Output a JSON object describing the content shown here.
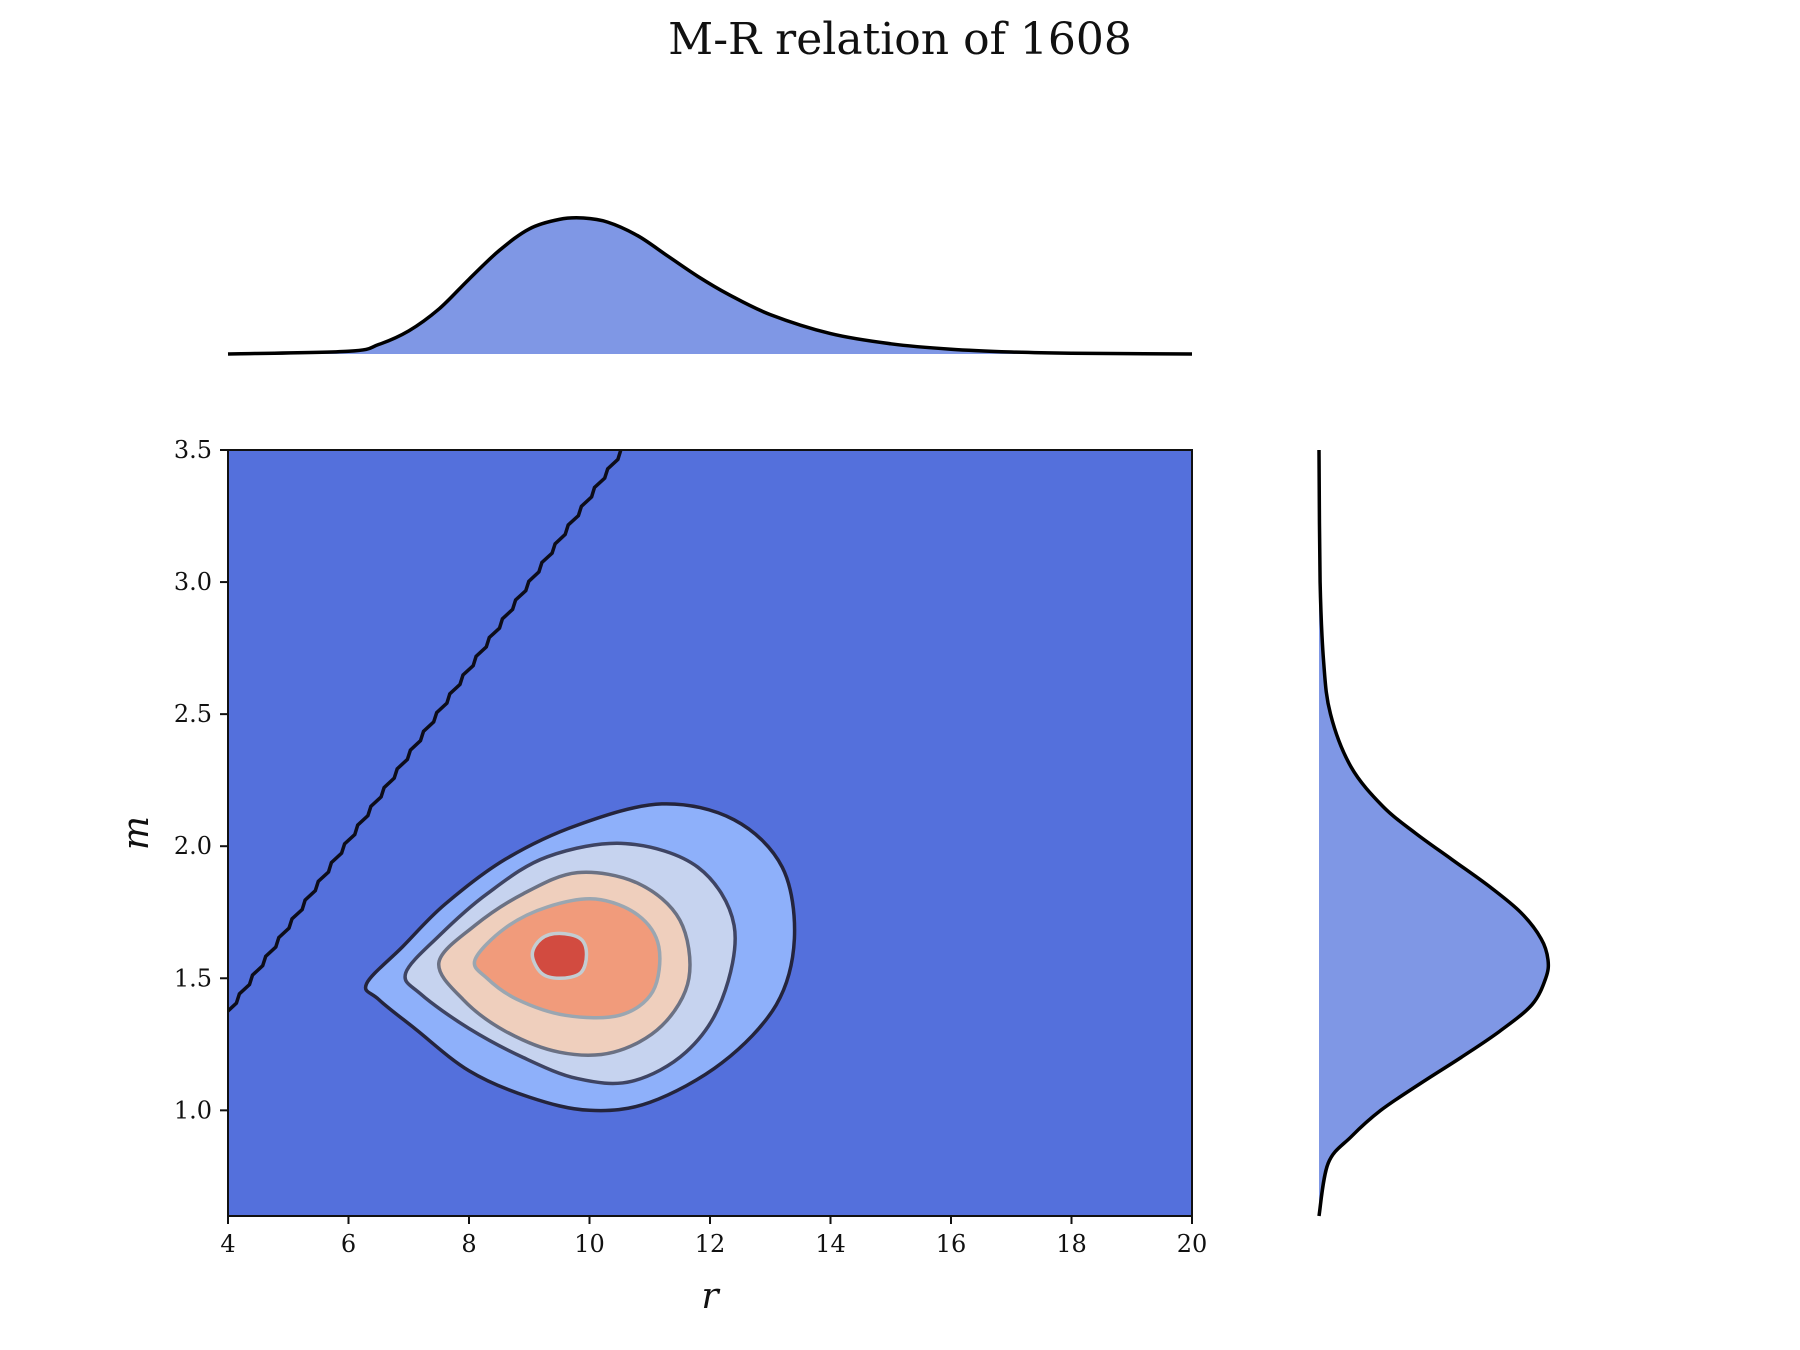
{
  "chart_data": {
    "type": "contour",
    "title": "M-R relation of 1608",
    "xlabel": "r",
    "ylabel": "m",
    "xlim": [
      4,
      20
    ],
    "ylim": [
      0.6,
      3.5
    ],
    "x_ticks": [
      "4",
      "6",
      "8",
      "10",
      "12",
      "14",
      "16",
      "18",
      "20"
    ],
    "y_ticks": [
      "1.0",
      "1.5",
      "2.0",
      "2.5",
      "3.0",
      "3.5"
    ],
    "grid": false,
    "joint_density": {
      "mode": [
        9.5,
        1.59
      ],
      "fill_colors": [
        "#5470dc",
        "#8eb0fa",
        "#c6d3ef",
        "#efcfbd",
        "#f19b7b",
        "#d24b40"
      ],
      "contour_line_colors": [
        "#24243c",
        "#3e4463",
        "#6b7183",
        "#9aa6b1",
        "#c3cdd2"
      ],
      "levels": [
        {
          "level": 1,
          "points": [
            [
              6.3,
              1.48
            ],
            [
              6.9,
              1.62
            ],
            [
              7.6,
              1.78
            ],
            [
              8.6,
              1.95
            ],
            [
              9.8,
              2.08
            ],
            [
              11.2,
              2.16
            ],
            [
              12.4,
              2.1
            ],
            [
              13.2,
              1.92
            ],
            [
              13.4,
              1.65
            ],
            [
              13.1,
              1.4
            ],
            [
              12.2,
              1.18
            ],
            [
              11,
              1.03
            ],
            [
              10,
              1
            ],
            [
              9,
              1.05
            ],
            [
              8,
              1.15
            ],
            [
              7.1,
              1.31
            ],
            [
              6.5,
              1.42
            ]
          ]
        },
        {
          "level": 2,
          "points": [
            [
              6.95,
              1.52
            ],
            [
              7.5,
              1.66
            ],
            [
              8.3,
              1.82
            ],
            [
              9.3,
              1.96
            ],
            [
              10.6,
              2.01
            ],
            [
              11.8,
              1.92
            ],
            [
              12.4,
              1.7
            ],
            [
              12.2,
              1.42
            ],
            [
              11.6,
              1.22
            ],
            [
              10.7,
              1.11
            ],
            [
              9.8,
              1.12
            ],
            [
              8.9,
              1.2
            ],
            [
              8,
              1.31
            ],
            [
              7.2,
              1.44
            ]
          ]
        },
        {
          "level": 3,
          "points": [
            [
              7.5,
              1.56
            ],
            [
              8.1,
              1.7
            ],
            [
              8.9,
              1.82
            ],
            [
              9.8,
              1.9
            ],
            [
              10.8,
              1.86
            ],
            [
              11.5,
              1.72
            ],
            [
              11.65,
              1.5
            ],
            [
              11.2,
              1.32
            ],
            [
              10.4,
              1.22
            ],
            [
              9.5,
              1.22
            ],
            [
              8.6,
              1.3
            ],
            [
              7.9,
              1.42
            ]
          ]
        },
        {
          "level": 4,
          "points": [
            [
              8.1,
              1.57
            ],
            [
              8.6,
              1.69
            ],
            [
              9.3,
              1.77
            ],
            [
              10.1,
              1.8
            ],
            [
              10.8,
              1.74
            ],
            [
              11.15,
              1.62
            ],
            [
              11.05,
              1.45
            ],
            [
              10.5,
              1.36
            ],
            [
              9.6,
              1.36
            ],
            [
              8.8,
              1.42
            ],
            [
              8.3,
              1.5
            ]
          ]
        },
        {
          "level": 5,
          "points": [
            [
              9.05,
              1.59
            ],
            [
              9.2,
              1.65
            ],
            [
              9.5,
              1.67
            ],
            [
              9.85,
              1.65
            ],
            [
              9.95,
              1.59
            ],
            [
              9.85,
              1.52
            ],
            [
              9.5,
              1.5
            ],
            [
              9.2,
              1.52
            ]
          ]
        }
      ],
      "boundary_line": {
        "points": [
          [
            4,
            1.37
          ],
          [
            10.55,
            3.5
          ]
        ]
      }
    },
    "marginal_r": {
      "fill_color": "#7f97e5",
      "x": [
        4,
        6,
        6.5,
        7,
        7.5,
        8,
        8.5,
        9,
        9.5,
        9.9,
        10.3,
        10.8,
        11.3,
        11.8,
        12.3,
        13,
        14,
        15,
        16,
        17,
        18,
        20
      ],
      "density": [
        0,
        0.02,
        0.07,
        0.17,
        0.33,
        0.55,
        0.76,
        0.92,
        0.99,
        1,
        0.97,
        0.87,
        0.72,
        0.57,
        0.44,
        0.29,
        0.15,
        0.075,
        0.035,
        0.015,
        0.006,
        0
      ]
    },
    "marginal_m": {
      "fill_color": "#7f97e5",
      "m": [
        0.6,
        0.8,
        0.9,
        1.0,
        1.1,
        1.2,
        1.3,
        1.4,
        1.5,
        1.57,
        1.65,
        1.75,
        1.85,
        1.95,
        2.05,
        2.15,
        2.3,
        2.5,
        2.7,
        3.0,
        3.5
      ],
      "density": [
        0,
        0.04,
        0.14,
        0.27,
        0.44,
        0.62,
        0.79,
        0.93,
        0.99,
        1,
        0.97,
        0.88,
        0.74,
        0.58,
        0.42,
        0.28,
        0.14,
        0.05,
        0.02,
        0.005,
        0
      ]
    }
  }
}
